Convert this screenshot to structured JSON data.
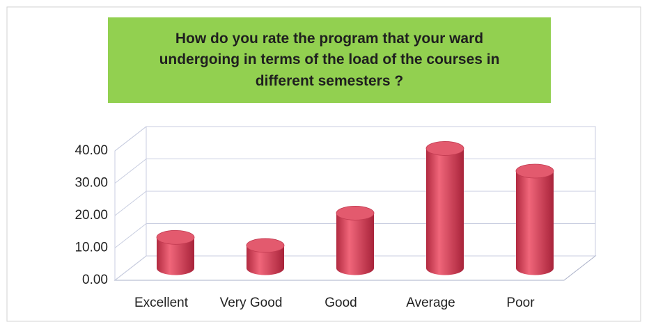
{
  "chart_data": {
    "type": "bar3d",
    "title": "How do you rate the program that your ward\nundergoing in terms of the load of the courses in\ndifferent semesters ?",
    "categories": [
      "Excellent",
      "Very Good",
      "Good",
      "Average",
      "Poor"
    ],
    "values": [
      9.5,
      7,
      17,
      37,
      30
    ],
    "color": "#d9435a",
    "ylim": [
      0,
      40
    ],
    "yticks": [
      {
        "value": 0,
        "label": "0.00"
      },
      {
        "value": 10,
        "label": "10.00"
      },
      {
        "value": 20,
        "label": "20.00"
      },
      {
        "value": 30,
        "label": "30.00"
      },
      {
        "value": 40,
        "label": "40.00"
      }
    ],
    "grid": true
  }
}
